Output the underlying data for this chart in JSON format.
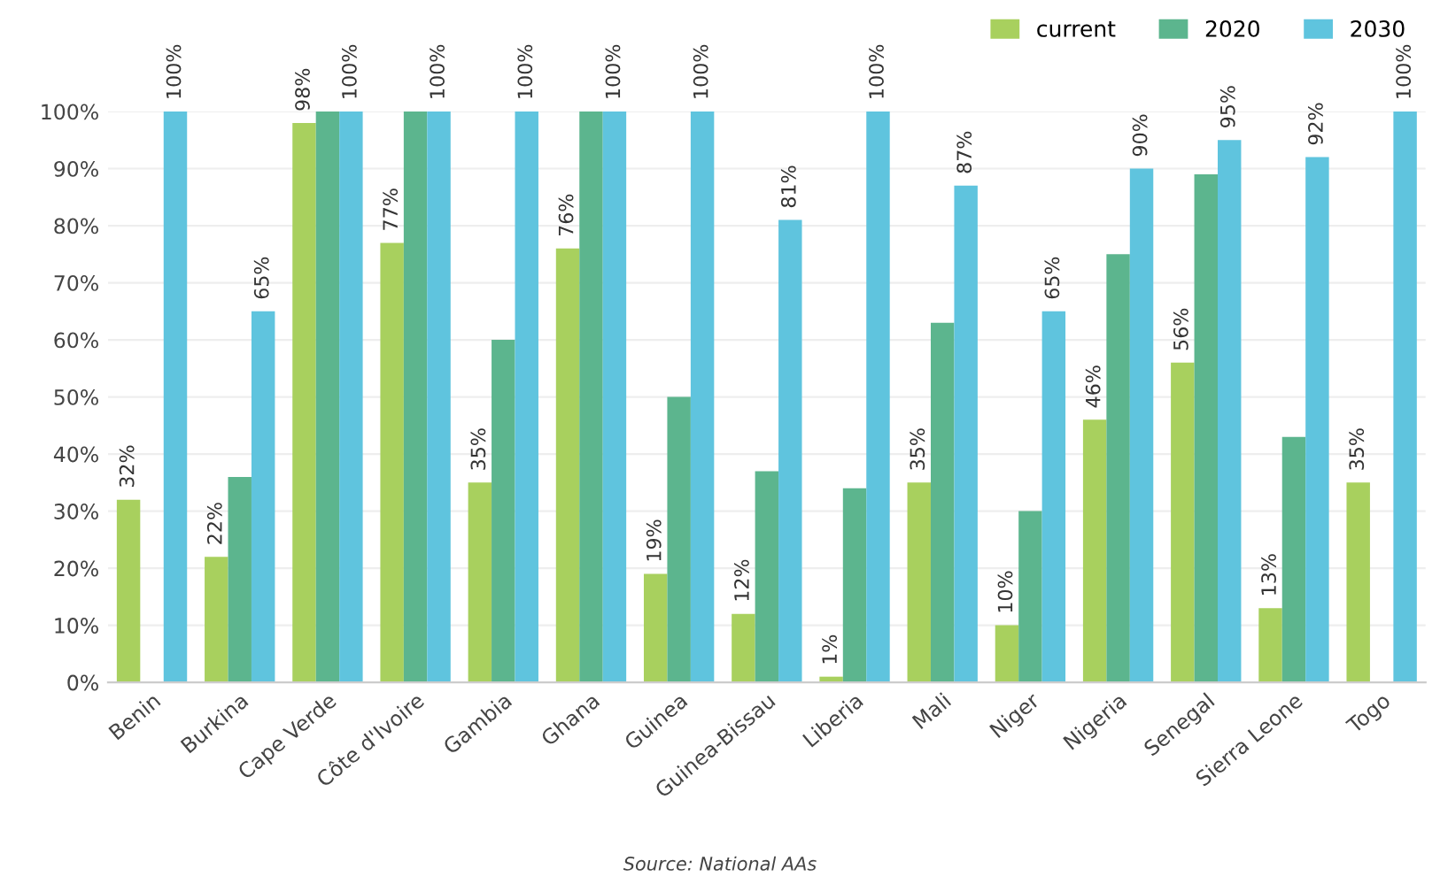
{
  "chart_data": {
    "type": "bar",
    "categories": [
      "Benin",
      "Burkina",
      "Cape Verde",
      "Côte d'Ivoire",
      "Gambia",
      "Ghana",
      "Guinea",
      "Guinea-Bissau",
      "Liberia",
      "Mali",
      "Niger",
      "Nigeria",
      "Senegal",
      "Sierra Leone",
      "Togo"
    ],
    "series": [
      {
        "name": "current",
        "color": "#a8d05e",
        "values": [
          32,
          22,
          98,
          77,
          35,
          76,
          19,
          12,
          1,
          35,
          10,
          46,
          56,
          13,
          35
        ],
        "value_labels": [
          "32%",
          "22%",
          "98%",
          "77%",
          "35%",
          "76%",
          "19%",
          "12%",
          "1%",
          "35%",
          "10%",
          "46%",
          "56%",
          "13%",
          "35%"
        ]
      },
      {
        "name": "2020",
        "color": "#5cb58e",
        "values": [
          null,
          36,
          100,
          100,
          60,
          100,
          50,
          37,
          34,
          63,
          30,
          75,
          89,
          43,
          null
        ]
      },
      {
        "name": "2030",
        "color": "#5fc4de",
        "values": [
          100,
          65,
          100,
          100,
          100,
          100,
          100,
          81,
          100,
          87,
          65,
          90,
          95,
          92,
          100
        ],
        "value_labels": [
          "100%",
          "65%",
          "100%",
          "100%",
          "100%",
          "100%",
          "100%",
          "81%",
          "100%",
          "87%",
          "65%",
          "90%",
          "95%",
          "92%",
          "100%"
        ]
      }
    ],
    "ylim": [
      0,
      100
    ],
    "yticks": [
      {
        "value": 0,
        "label": "0%"
      },
      {
        "value": 10,
        "label": "10%"
      },
      {
        "value": 20,
        "label": "20%"
      },
      {
        "value": 30,
        "label": "30%"
      },
      {
        "value": 40,
        "label": "40%"
      },
      {
        "value": 50,
        "label": "50%"
      },
      {
        "value": 60,
        "label": "60%"
      },
      {
        "value": 70,
        "label": "70%"
      },
      {
        "value": 80,
        "label": "80%"
      },
      {
        "value": 90,
        "label": "90%"
      },
      {
        "value": 100,
        "label": "100%"
      }
    ],
    "grid": "y",
    "legend": "top right",
    "annotations": [
      "Source: National AAs"
    ]
  }
}
